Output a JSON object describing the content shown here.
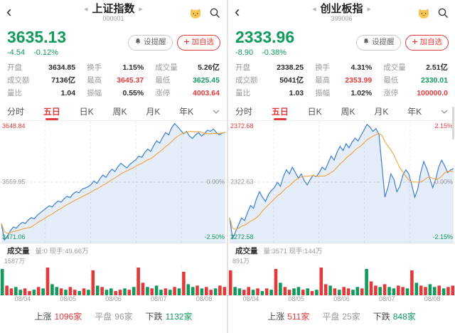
{
  "colors": {
    "up_red": "#e23a3a",
    "down_green": "#119b5c",
    "price_line": "#3c7fd0",
    "ma_line": "#f0a23c",
    "area_fill": "rgba(70,130,210,0.14)",
    "grid": "#e9e9e9"
  },
  "tabs": {
    "items": [
      "分时",
      "五日",
      "日K",
      "周K",
      "月K",
      "年K"
    ],
    "active_index": 1
  },
  "actions": {
    "alert_label": "设提醒",
    "watch_label": "加自选"
  },
  "left": {
    "header": {
      "title": "上证指数",
      "code": "000001"
    },
    "quote": {
      "price": "3635.13",
      "change": "-4.54",
      "change_pct": "-0.12%"
    },
    "stats": [
      {
        "label": "开盘",
        "value": "3634.85"
      },
      {
        "label": "换手",
        "value": "1.15%"
      },
      {
        "label": "成交量",
        "value": "5.26亿"
      },
      {
        "label": "成交额",
        "value": "7136亿"
      },
      {
        "label": "最高",
        "value": "3645.37"
      },
      {
        "label": "最低",
        "value": "3625.45"
      },
      {
        "label": "量比",
        "value": "1.04"
      },
      {
        "label": "振幅",
        "value": "0.55%"
      },
      {
        "label": "涨停",
        "value": "4003.64"
      }
    ],
    "chart": {
      "type": "line",
      "axis_left": {
        "top": "3648.84",
        "mid": "3559.95",
        "bottom": "3471.06"
      },
      "axis_right": {
        "top": "",
        "mid": "0.00%",
        "bottom": "-2.50%"
      },
      "range_pct": [
        -2.5,
        2.5
      ],
      "price_pct": [
        -1.75,
        -2.45,
        -2.3,
        -2.05,
        -1.9,
        -1.95,
        -1.8,
        -1.7,
        -1.75,
        -1.6,
        -1.5,
        -1.55,
        -1.4,
        -1.3,
        -1.2,
        -1.1,
        -1.0,
        -1.05,
        -0.9,
        -0.8,
        -0.85,
        -0.7,
        -0.6,
        -0.65,
        -0.5,
        -0.4,
        -0.45,
        -0.3,
        -0.25,
        -0.2,
        -0.1,
        0.05,
        -0.05,
        0.15,
        0.3,
        0.2,
        0.4,
        0.55,
        0.45,
        0.65,
        0.8,
        0.7,
        0.6,
        0.75,
        0.85,
        0.95,
        1.1,
        1.05,
        1.25,
        1.4,
        1.3,
        1.55,
        1.75,
        1.65,
        1.9,
        2.1,
        2.0,
        2.3,
        2.48,
        2.35,
        2.2,
        2.05,
        2.15,
        1.95,
        1.85,
        2.0,
        2.1,
        1.95,
        2.05,
        2.2,
        2.15,
        2.25,
        2.1,
        2.0,
        2.08,
        2.11
      ],
      "x_labels": [
        "08/04",
        "08/05",
        "08/06",
        "08/07",
        "08/08"
      ]
    },
    "volume": {
      "title": "成交量",
      "detail": "量:0 现手:49.66万",
      "axis_max": "1587万",
      "heights": [
        0.95,
        0.35,
        0.25,
        0.3,
        0.2,
        0.25,
        0.15,
        0.2,
        0.3,
        0.25,
        1.0,
        0.4,
        0.3,
        0.25,
        0.2,
        0.3,
        0.2,
        0.15,
        0.25,
        0.2,
        0.9,
        0.35,
        0.3,
        0.2,
        0.25,
        0.15,
        0.2,
        0.25,
        0.2,
        0.3,
        1.0,
        0.45,
        0.3,
        0.25,
        0.35,
        0.2,
        0.25,
        0.2,
        0.3,
        0.25,
        0.85,
        0.4,
        0.3,
        0.35,
        0.25,
        0.3,
        0.2,
        0.25,
        0.35,
        0.3
      ],
      "colors": "grrggrrgrgrggrgrrgrgrgrggrrgrgrrgrggrgrgrggrgrrgrr"
    },
    "summary": {
      "up_label": "上涨",
      "up_count": "1096家",
      "flat_label": "平盘",
      "flat_count": "96家",
      "down_label": "下跌",
      "down_count": "1132家"
    }
  },
  "right": {
    "header": {
      "title": "创业板指",
      "code": "399006"
    },
    "quote": {
      "price": "2333.96",
      "change": "-8.90",
      "change_pct": "-0.38%"
    },
    "stats": [
      {
        "label": "开盘",
        "value": "2338.25"
      },
      {
        "label": "换手",
        "value": "4.31%"
      },
      {
        "label": "成交量",
        "value": "2.51亿"
      },
      {
        "label": "成交额",
        "value": "5041亿"
      },
      {
        "label": "最高",
        "value": "2353.99"
      },
      {
        "label": "最低",
        "value": "2330.01"
      },
      {
        "label": "量比",
        "value": "1.03"
      },
      {
        "label": "振幅",
        "value": "1.02%"
      },
      {
        "label": "涨停",
        "value": "100000.0"
      }
    ],
    "chart": {
      "type": "line",
      "axis_left": {
        "top": "2372.68",
        "mid": "2322.63",
        "bottom": "2272.58"
      },
      "axis_right": {
        "top": "2.15%",
        "mid": "0.00%",
        "bottom": "-2.15%"
      },
      "range_pct": [
        -2.15,
        2.15
      ],
      "price_pct": [
        -1.3,
        -2.05,
        -1.8,
        -1.55,
        -1.3,
        -1.4,
        -1.1,
        -0.85,
        -0.95,
        -0.6,
        -0.35,
        -0.55,
        -0.7,
        -0.45,
        -0.3,
        -0.2,
        0.0,
        -0.15,
        0.2,
        0.45,
        0.3,
        0.55,
        0.35,
        0.15,
        0.3,
        0.05,
        -0.1,
        0.1,
        0.25,
        0.2,
        0.35,
        0.55,
        0.45,
        0.7,
        0.95,
        0.8,
        1.1,
        1.3,
        1.15,
        1.4,
        1.25,
        1.45,
        1.6,
        1.5,
        1.7,
        1.9,
        2.1,
        2.0,
        1.85,
        1.95,
        1.75,
        0.6,
        -0.55,
        -0.2,
        0.3,
        0.1,
        -0.35,
        -0.15,
        0.25,
        0.45,
        0.3,
        -0.1,
        -0.55,
        -0.25,
        0.35,
        0.75,
        0.5,
        0.15,
        -0.2,
        0.1,
        0.55,
        0.8,
        0.6,
        0.35,
        0.45,
        0.49
      ],
      "x_labels": [
        "08/04",
        "08/05",
        "08/06",
        "08/07",
        "08/08"
      ]
    },
    "volume": {
      "title": "成交量",
      "detail": "量:3571 现手:144万",
      "axis_max": "891万",
      "heights": [
        0.9,
        0.3,
        0.25,
        0.2,
        0.3,
        0.2,
        0.25,
        0.15,
        0.25,
        0.2,
        0.95,
        0.45,
        0.3,
        0.2,
        0.25,
        0.3,
        0.2,
        0.25,
        0.15,
        0.2,
        1.0,
        0.4,
        0.35,
        0.25,
        0.2,
        0.3,
        0.25,
        0.2,
        0.3,
        0.25,
        0.95,
        0.5,
        0.35,
        0.3,
        0.4,
        0.3,
        0.25,
        0.35,
        0.3,
        0.25,
        0.9,
        0.45,
        0.35,
        0.3,
        0.4,
        0.3,
        0.35,
        0.25,
        0.3,
        0.35
      ],
      "colors": "rggrrgrgrgrgrrggrgrgrrgrgrrggrgrrgrggrrgrgrrggrgrr"
    },
    "summary": {
      "up_label": "上涨",
      "up_count": "511家",
      "flat_label": "平盘",
      "flat_count": "25家",
      "down_label": "下跌",
      "down_count": "848家"
    }
  }
}
